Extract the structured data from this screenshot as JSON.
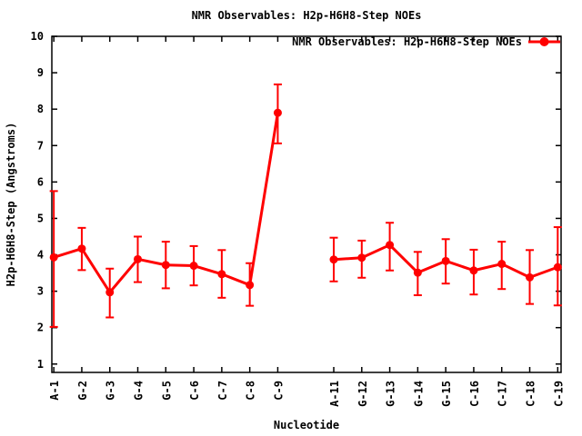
{
  "colors": {
    "series": "#ff0000",
    "axis": "#000000",
    "background": "#ffffff"
  },
  "chart_data": {
    "type": "line",
    "title": "NMR Observables: H2p-H6H8-Step NOEs",
    "xlabel": "Nucleotide",
    "ylabel": "H2p-H6H8-Step (Angstroms)",
    "legend": {
      "label": "NMR Observables: H2p-H6H8-Step NOEs",
      "position": "top-right-inside",
      "marker": "filled-circle-on-line"
    },
    "grid": false,
    "ylim": [
      0.77,
      10
    ],
    "xlim": [
      0.93,
      19.12
    ],
    "yticks": [
      1,
      2,
      3,
      4,
      5,
      6,
      7,
      8,
      9,
      10
    ],
    "series": [
      {
        "name": "NMR Observables: H2p-H6H8-Step NOEs",
        "color": "#ff0000",
        "marker": "filled-circle",
        "error_bars": true,
        "points": [
          {
            "label": "A-1",
            "position": 1,
            "value": 3.93,
            "err_low": 2.02,
            "err_high": 5.75
          },
          {
            "label": "G-2",
            "position": 2,
            "value": 4.17,
            "err_low": 3.58,
            "err_high": 4.74
          },
          {
            "label": "G-3",
            "position": 3,
            "value": 2.97,
            "err_low": 2.28,
            "err_high": 3.62
          },
          {
            "label": "G-4",
            "position": 4,
            "value": 3.88,
            "err_low": 3.25,
            "err_high": 4.5
          },
          {
            "label": "G-5",
            "position": 5,
            "value": 3.72,
            "err_low": 3.08,
            "err_high": 4.36
          },
          {
            "label": "C-6",
            "position": 6,
            "value": 3.7,
            "err_low": 3.16,
            "err_high": 4.24
          },
          {
            "label": "C-7",
            "position": 7,
            "value": 3.47,
            "err_low": 2.82,
            "err_high": 4.13
          },
          {
            "label": "C-8",
            "position": 8,
            "value": 3.17,
            "err_low": 2.6,
            "err_high": 3.77
          },
          {
            "label": "C-9",
            "position": 9,
            "value": 7.9,
            "err_low": 7.06,
            "err_high": 8.68
          },
          {
            "label": "A-11",
            "position": 11,
            "value": 3.87,
            "err_low": 3.27,
            "err_high": 4.47
          },
          {
            "label": "G-12",
            "position": 12,
            "value": 3.92,
            "err_low": 3.37,
            "err_high": 4.39
          },
          {
            "label": "G-13",
            "position": 13,
            "value": 4.27,
            "err_low": 3.57,
            "err_high": 4.88
          },
          {
            "label": "G-14",
            "position": 14,
            "value": 3.51,
            "err_low": 2.89,
            "err_high": 4.08
          },
          {
            "label": "G-15",
            "position": 15,
            "value": 3.83,
            "err_low": 3.21,
            "err_high": 4.43
          },
          {
            "label": "C-16",
            "position": 16,
            "value": 3.57,
            "err_low": 2.91,
            "err_high": 4.14
          },
          {
            "label": "C-17",
            "position": 17,
            "value": 3.75,
            "err_low": 3.06,
            "err_high": 4.36
          },
          {
            "label": "C-18",
            "position": 18,
            "value": 3.38,
            "err_low": 2.65,
            "err_high": 4.13
          },
          {
            "label": "C-19",
            "position": 19,
            "value": 3.66,
            "err_low": 2.61,
            "err_high": 4.76
          }
        ]
      }
    ]
  }
}
